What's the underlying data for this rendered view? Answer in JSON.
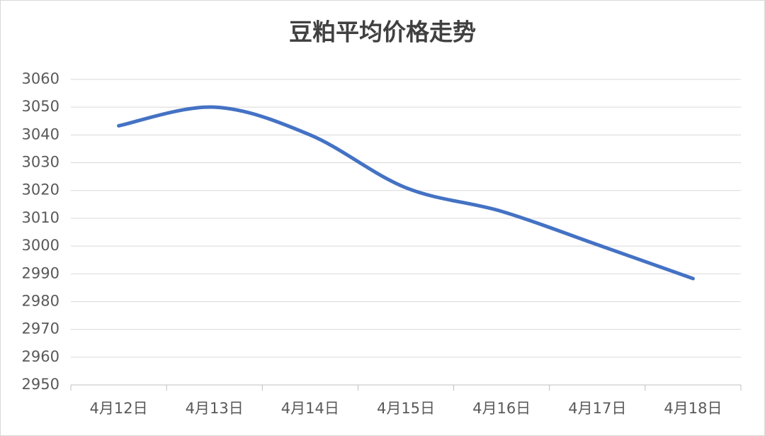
{
  "chart_data": {
    "type": "line",
    "title": "豆粕平均价格走势",
    "categories": [
      "4月12日",
      "4月13日",
      "4月14日",
      "4月15日",
      "4月16日",
      "4月17日",
      "4月18日"
    ],
    "series": [
      {
        "name": "豆粕平均价格",
        "color": "#4472c4",
        "values": [
          3043.3,
          3050,
          3040,
          3021,
          3012.5,
          3000.5,
          2988.3
        ]
      }
    ],
    "ylim": [
      2950,
      3060
    ],
    "yticks": [
      2950,
      2960,
      2970,
      2980,
      2990,
      3000,
      3010,
      3020,
      3030,
      3040,
      3050,
      3060
    ],
    "grid": true,
    "smooth": true
  }
}
